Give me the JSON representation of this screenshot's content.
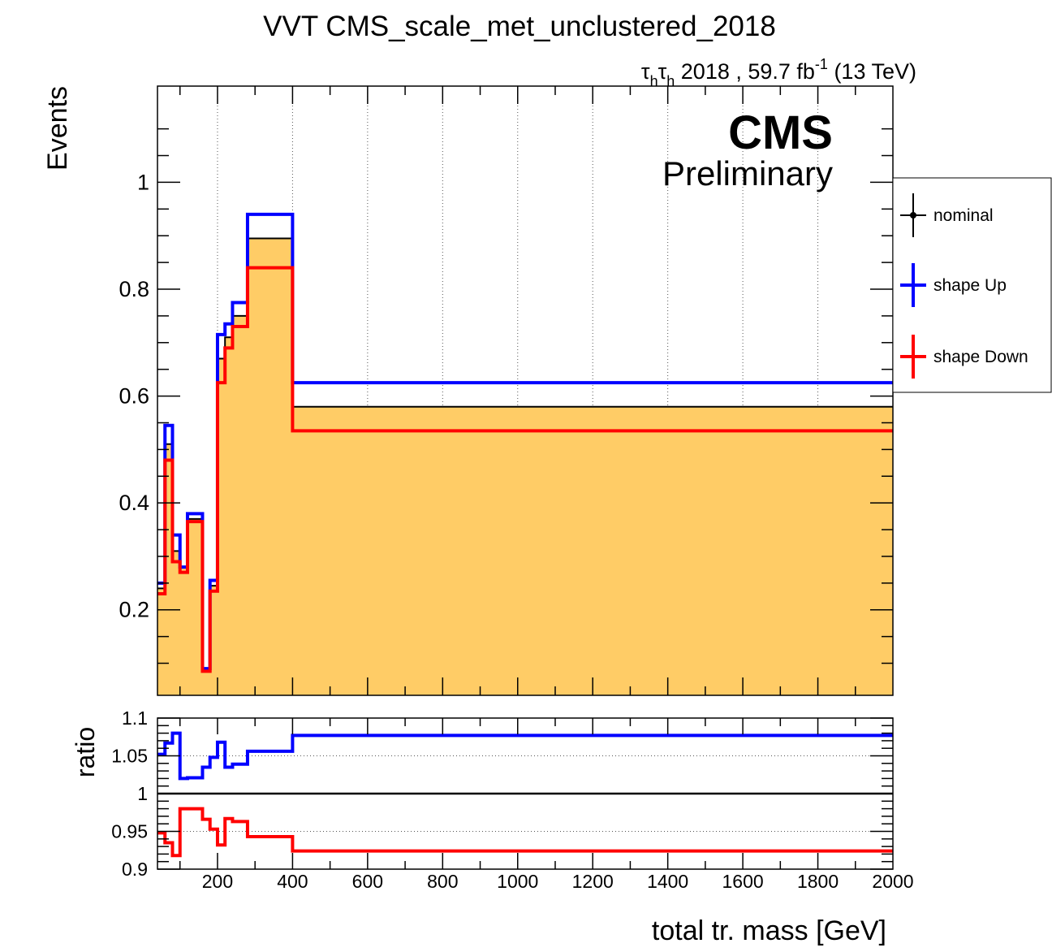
{
  "title": "VVT CMS_scale_met_unclustered_2018",
  "lumi": {
    "channel_base": "τ",
    "channel_sub1": "h",
    "channel_sub2": "h",
    "text_mid": " 2018 , 59.7 fb",
    "superscript": "-1",
    "text_end": " (13 TeV)"
  },
  "cms_label": "CMS",
  "cms_sublabel": "Preliminary",
  "legend": [
    {
      "label": "nominal",
      "color": "#000000",
      "marker": true
    },
    {
      "label": "shape Up",
      "color": "#0000ff",
      "marker": false
    },
    {
      "label": "shape Down",
      "color": "#ff0000",
      "marker": false
    }
  ],
  "colors": {
    "fill": "#ffcc66",
    "nominal": "#000000",
    "up": "#0000ff",
    "down": "#ff0000"
  },
  "chart_data": [
    {
      "type": "step",
      "ylabel": "Events",
      "xlim": [
        40,
        2000
      ],
      "ylim": [
        0.04,
        1.18
      ],
      "yticks": [
        0.2,
        0.4,
        0.6,
        0.8,
        1.0
      ],
      "ytick_labels": [
        "0.2",
        "0.4",
        "0.6",
        "0.8",
        "1"
      ],
      "bin_edges": [
        40,
        60,
        80,
        100,
        120,
        140,
        160,
        180,
        200,
        220,
        240,
        260,
        280,
        300,
        320,
        340,
        360,
        380,
        400,
        2000
      ],
      "series": [
        {
          "name": "nominal",
          "values": [
            0.24,
            0.51,
            0.31,
            0.28,
            0.37,
            0.37,
            0.09,
            0.245,
            0.67,
            0.71,
            0.75,
            0.75,
            0.895,
            0.895,
            0.895,
            0.895,
            0.895,
            0.895,
            0.58
          ]
        },
        {
          "name": "shape Up",
          "values": [
            0.25,
            0.545,
            0.34,
            0.28,
            0.38,
            0.38,
            0.09,
            0.255,
            0.715,
            0.735,
            0.775,
            0.775,
            0.94,
            0.94,
            0.94,
            0.94,
            0.94,
            0.94,
            0.625
          ]
        },
        {
          "name": "shape Down",
          "values": [
            0.23,
            0.48,
            0.29,
            0.27,
            0.365,
            0.365,
            0.085,
            0.235,
            0.625,
            0.69,
            0.73,
            0.73,
            0.84,
            0.84,
            0.84,
            0.84,
            0.84,
            0.84,
            0.535
          ]
        }
      ]
    },
    {
      "type": "step",
      "ylabel": "ratio",
      "xlabel": "total tr. mass [GeV]",
      "xlim": [
        40,
        2000
      ],
      "ylim": [
        0.9,
        1.1
      ],
      "yticks": [
        0.9,
        0.95,
        1.0,
        1.05,
        1.1
      ],
      "ytick_labels": [
        "0.9",
        "0.95",
        "1",
        "1.05",
        "1.1"
      ],
      "xticks": [
        200,
        400,
        600,
        800,
        1000,
        1200,
        1400,
        1600,
        1800,
        2000
      ],
      "xtick_labels": [
        "200",
        "400",
        "600",
        "800",
        "1000",
        "1200",
        "1400",
        "1600",
        "1800",
        "2000"
      ],
      "bin_edges": [
        40,
        60,
        80,
        100,
        120,
        140,
        160,
        180,
        200,
        220,
        240,
        260,
        280,
        300,
        320,
        340,
        360,
        380,
        400,
        2000
      ],
      "series": [
        {
          "name": "shape Up",
          "values": [
            1.052,
            1.067,
            1.08,
            1.02,
            1.021,
            1.021,
            1.035,
            1.048,
            1.068,
            1.035,
            1.039,
            1.039,
            1.056,
            1.056,
            1.056,
            1.056,
            1.056,
            1.056,
            1.077
          ]
        },
        {
          "name": "shape Down",
          "values": [
            0.948,
            0.935,
            0.918,
            0.98,
            0.98,
            0.98,
            0.966,
            0.953,
            0.932,
            0.967,
            0.963,
            0.963,
            0.943,
            0.943,
            0.943,
            0.943,
            0.943,
            0.943,
            0.924
          ]
        }
      ]
    }
  ]
}
